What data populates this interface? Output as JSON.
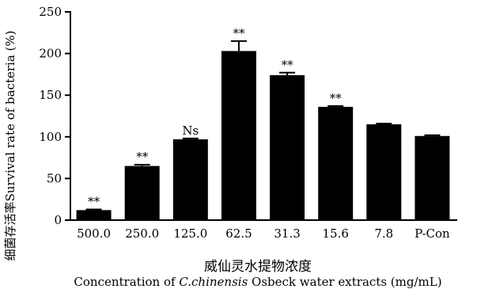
{
  "chart_data": {
    "type": "bar",
    "title": "",
    "ylabel": "细菌存活率Survival rate of bacteria (%)",
    "xlabel_cn": "威仙灵水提物浓度",
    "xlabel_en": {
      "pre": "Concentration of ",
      "italic": "C.chinensis",
      "post": " Osbeck water extracts (mg/mL)"
    },
    "categories": [
      "500.0",
      "250.0",
      "125.0",
      "62.5",
      "31.3",
      "15.6",
      "7.8",
      "P-Con"
    ],
    "values": [
      12,
      65,
      97,
      203,
      174,
      136,
      115,
      101
    ],
    "errors": [
      0.8,
      1.5,
      1.0,
      12,
      3,
      1.0,
      0.8,
      1.0
    ],
    "annotations": [
      "**",
      "**",
      "Ns",
      "**",
      "**",
      "**",
      "",
      ""
    ],
    "ylim": [
      0,
      250
    ],
    "yticks": [
      0,
      50,
      100,
      150,
      200,
      250
    ],
    "grid": false,
    "bar_color": "#000000"
  }
}
